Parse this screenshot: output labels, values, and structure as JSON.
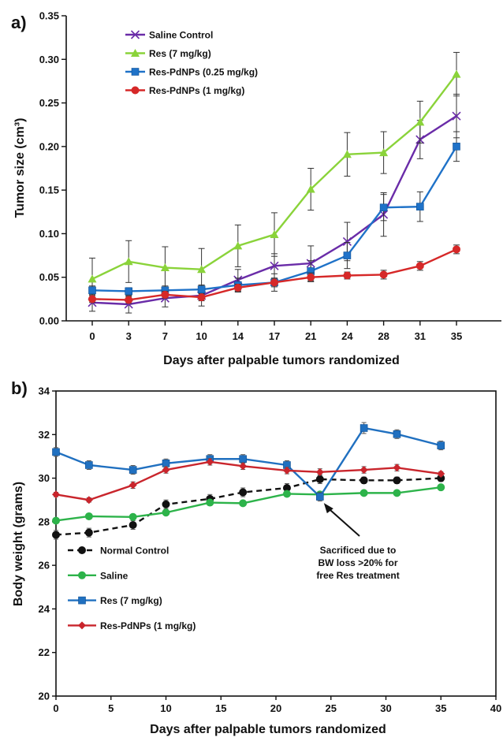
{
  "panels": {
    "a": {
      "letter": "a)"
    },
    "b": {
      "letter": "b)"
    }
  },
  "colors": {
    "purple": "#6a2ca8",
    "green": "#8ad33a",
    "blue": "#1f72c8",
    "red": "#d62828",
    "black": "#111111",
    "green2": "#2db34a",
    "blue2": "#2070c0",
    "red2": "#c9252c"
  },
  "chart_data": [
    {
      "type": "line",
      "categories": [
        "0",
        "3",
        "7",
        "10",
        "14",
        "17",
        "21",
        "24",
        "28",
        "31",
        "35"
      ],
      "xlabel": "Days after palpable tumors randomized",
      "ylabel": "Tumor size (cm³)",
      "ylim": [
        0,
        0.35
      ],
      "yticks": [
        "0.00",
        "0.05",
        "0.10",
        "0.15",
        "0.20",
        "0.25",
        "0.30",
        "0.35"
      ],
      "grid": false,
      "legend_position": "top-left",
      "series": [
        {
          "name": "Saline Control",
          "color": "#6a2ca8",
          "marker": "x",
          "values": [
            0.021,
            0.019,
            0.026,
            0.029,
            0.047,
            0.063,
            0.066,
            0.091,
            0.122,
            0.208,
            0.235
          ],
          "errors": [
            0.01,
            0.01,
            0.01,
            0.012,
            0.012,
            0.014,
            0.02,
            0.022,
            0.025,
            0.022,
            0.025
          ]
        },
        {
          "name": "Res (7 mg/kg)",
          "color": "#8ad33a",
          "marker": "triangle",
          "values": [
            0.048,
            0.068,
            0.061,
            0.059,
            0.086,
            0.099,
            0.151,
            0.191,
            0.193,
            0.228,
            0.283
          ],
          "errors": [
            0.024,
            0.024,
            0.024,
            0.024,
            0.024,
            0.025,
            0.024,
            0.025,
            0.024,
            0.024,
            0.025
          ]
        },
        {
          "name": "Res-PdNPs (0.25 mg/kg)",
          "color": "#1f72c8",
          "marker": "square",
          "values": [
            0.035,
            0.034,
            0.035,
            0.036,
            0.041,
            0.044,
            0.057,
            0.075,
            0.13,
            0.131,
            0.2
          ],
          "errors": [
            0.005,
            0.004,
            0.005,
            0.005,
            0.008,
            0.01,
            0.012,
            0.015,
            0.015,
            0.017,
            0.017
          ]
        },
        {
          "name": "Res-PdNPs (1 mg/kg)",
          "color": "#d62828",
          "marker": "circle",
          "values": [
            0.025,
            0.024,
            0.03,
            0.027,
            0.038,
            0.044,
            0.05,
            0.052,
            0.053,
            0.063,
            0.082
          ],
          "errors": [
            0.004,
            0.004,
            0.004,
            0.004,
            0.004,
            0.005,
            0.005,
            0.004,
            0.005,
            0.005,
            0.005
          ]
        }
      ]
    },
    {
      "type": "line",
      "xlabel": "Days after palpable tumors randomized",
      "ylabel": "Body weight (grams)",
      "xlim": [
        0,
        40
      ],
      "ylim": [
        20,
        34
      ],
      "xticks": [
        0,
        5,
        10,
        15,
        20,
        25,
        30,
        35,
        40
      ],
      "yticks": [
        20,
        22,
        24,
        26,
        28,
        30,
        32,
        34
      ],
      "grid": false,
      "legend_position": "middle-left",
      "series": [
        {
          "name": "Normal Control",
          "color": "#111111",
          "marker": "circle",
          "dashed": true,
          "x": [
            0,
            3,
            7,
            10,
            14,
            17,
            21,
            24,
            28,
            31,
            35
          ],
          "values": [
            27.4,
            27.5,
            27.85,
            28.8,
            29.05,
            29.35,
            29.55,
            29.95,
            29.9,
            29.9,
            30.0
          ],
          "errors": [
            0.2,
            0.2,
            0.2,
            0.2,
            0.2,
            0.2,
            0.2,
            0.2,
            0.15,
            0.15,
            0.15
          ]
        },
        {
          "name": "Saline",
          "color": "#2db34a",
          "marker": "circle",
          "x": [
            0,
            3,
            7,
            10,
            14,
            17,
            21,
            24,
            28,
            31,
            35
          ],
          "values": [
            28.05,
            28.25,
            28.22,
            28.42,
            28.88,
            28.85,
            29.28,
            29.25,
            29.32,
            29.32,
            29.58
          ],
          "errors": [
            0.1,
            0.1,
            0.1,
            0.1,
            0.1,
            0.1,
            0.1,
            0.1,
            0.1,
            0.1,
            0.1
          ]
        },
        {
          "name": "Res (7 mg/kg)",
          "color": "#2070c0",
          "marker": "square",
          "x": [
            0,
            3,
            7,
            10,
            14,
            17,
            21,
            24,
            28,
            31,
            35
          ],
          "values": [
            31.2,
            30.6,
            30.38,
            30.68,
            30.88,
            30.88,
            30.6,
            29.15,
            32.3,
            32.02,
            31.5
          ],
          "errors": [
            0.2,
            0.2,
            0.2,
            0.2,
            0.2,
            0.2,
            0.2,
            0.2,
            0.25,
            0.2,
            0.2
          ]
        },
        {
          "name": "Res-PdNPs (1 mg/kg)",
          "color": "#c9252c",
          "marker": "diamond",
          "x": [
            0,
            3,
            7,
            10,
            14,
            17,
            21,
            24,
            28,
            31,
            35
          ],
          "values": [
            29.25,
            29.0,
            29.68,
            30.38,
            30.75,
            30.55,
            30.35,
            30.28,
            30.38,
            30.48,
            30.2
          ],
          "errors": [
            0.1,
            0.1,
            0.15,
            0.15,
            0.15,
            0.15,
            0.15,
            0.15,
            0.15,
            0.15,
            0.1
          ]
        }
      ],
      "annotations": [
        {
          "lines": [
            "Sacrificed due to",
            "BW loss >20% for",
            "free Res treatment"
          ],
          "points_to": {
            "x": 24,
            "y": 29.15
          }
        }
      ]
    }
  ]
}
